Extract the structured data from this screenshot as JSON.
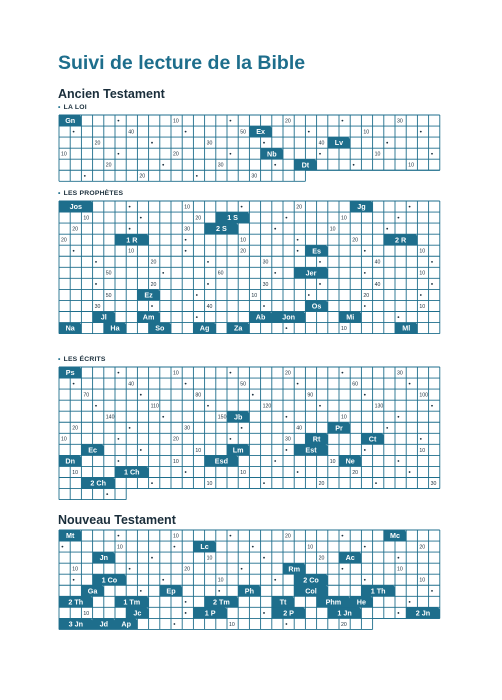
{
  "title": "Suivi de lecture de la Bible",
  "colors": {
    "accent": "#1e6e8c",
    "text": "#1a2e3b",
    "pill_text": "#ffffff"
  },
  "sections": [
    {
      "testament": "Ancien Testament",
      "label": "LA LOI",
      "books": [
        {
          "abbr": "Gn",
          "chapters": 50
        },
        {
          "abbr": "Ex",
          "chapters": 40
        },
        {
          "abbr": "Lv",
          "chapters": 27
        },
        {
          "abbr": "Nb",
          "chapters": 36
        },
        {
          "abbr": "Dt",
          "chapters": 34
        }
      ]
    },
    {
      "label": "LES PROPHÈTES",
      "books": [
        {
          "abbr": "Jos",
          "chapters": 24
        },
        {
          "abbr": "Jg",
          "chapters": 21
        },
        {
          "abbr": "1 S",
          "chapters": 31
        },
        {
          "abbr": "2 S",
          "chapters": 24
        },
        {
          "abbr": "1 R",
          "chapters": 22
        },
        {
          "abbr": "2 R",
          "chapters": 25
        },
        {
          "abbr": "Es",
          "chapters": 66
        },
        {
          "abbr": "Jer",
          "chapters": 52
        },
        {
          "abbr": "Ez",
          "chapters": 48
        },
        {
          "abbr": "Os",
          "chapters": 14
        },
        {
          "abbr": "Jl",
          "chapters": 3
        },
        {
          "abbr": "Am",
          "chapters": 9
        },
        {
          "abbr": "Ab",
          "chapters": 1
        },
        {
          "abbr": "Jon",
          "chapters": 4
        },
        {
          "abbr": "Mi",
          "chapters": 7
        },
        {
          "abbr": "Na",
          "chapters": 3
        },
        {
          "abbr": "Ha",
          "chapters": 3
        },
        {
          "abbr": "So",
          "chapters": 3
        },
        {
          "abbr": "Ag",
          "chapters": 2
        },
        {
          "abbr": "Za",
          "chapters": 14
        },
        {
          "abbr": "Ml",
          "chapters": 3
        }
      ]
    },
    {
      "label": "LES ÉCRITS",
      "books": [
        {
          "abbr": "Ps",
          "chapters": 150
        },
        {
          "abbr": "Jb",
          "chapters": 42
        },
        {
          "abbr": "Pr",
          "chapters": 31
        },
        {
          "abbr": "Rt",
          "chapters": 4
        },
        {
          "abbr": "Ct",
          "chapters": 8
        },
        {
          "abbr": "Ec",
          "chapters": 12
        },
        {
          "abbr": "Lm",
          "chapters": 5
        },
        {
          "abbr": "Est",
          "chapters": 10
        },
        {
          "abbr": "Dn",
          "chapters": 12
        },
        {
          "abbr": "Esd",
          "chapters": 10
        },
        {
          "abbr": "Ne",
          "chapters": 13
        },
        {
          "abbr": "1 Ch",
          "chapters": 29
        },
        {
          "abbr": "2 Ch",
          "chapters": 36
        }
      ]
    },
    {
      "testament": "Nouveau Testament",
      "label": "",
      "books": [
        {
          "abbr": "Mt",
          "chapters": 28
        },
        {
          "abbr": "Mc",
          "chapters": 16
        },
        {
          "abbr": "Lc",
          "chapters": 24
        },
        {
          "abbr": "Jn",
          "chapters": 21
        },
        {
          "abbr": "Ac",
          "chapters": 28
        },
        {
          "abbr": "Rm",
          "chapters": 16
        },
        {
          "abbr": "1 Co",
          "chapters": 16
        },
        {
          "abbr": "2 Co",
          "chapters": 13
        },
        {
          "abbr": "Ga",
          "chapters": 6
        },
        {
          "abbr": "Ep",
          "chapters": 6
        },
        {
          "abbr": "Ph",
          "chapters": 4
        },
        {
          "abbr": "Col",
          "chapters": 4
        },
        {
          "abbr": "1 Th",
          "chapters": 5
        },
        {
          "abbr": "2 Th",
          "chapters": 3
        },
        {
          "abbr": "1 Tm",
          "chapters": 6
        },
        {
          "abbr": "2 Tm",
          "chapters": 4
        },
        {
          "abbr": "Tt",
          "chapters": 3
        },
        {
          "abbr": "Phm",
          "chapters": 1
        },
        {
          "abbr": "He",
          "chapters": 13
        },
        {
          "abbr": "Jc",
          "chapters": 5
        },
        {
          "abbr": "1 P",
          "chapters": 5
        },
        {
          "abbr": "2 P",
          "chapters": 3
        },
        {
          "abbr": "1 Jn",
          "chapters": 5
        },
        {
          "abbr": "2 Jn",
          "chapters": 1
        },
        {
          "abbr": "3 Jn",
          "chapters": 1
        },
        {
          "abbr": "Jd",
          "chapters": 1
        },
        {
          "abbr": "Ap",
          "chapters": 22
        }
      ]
    }
  ]
}
